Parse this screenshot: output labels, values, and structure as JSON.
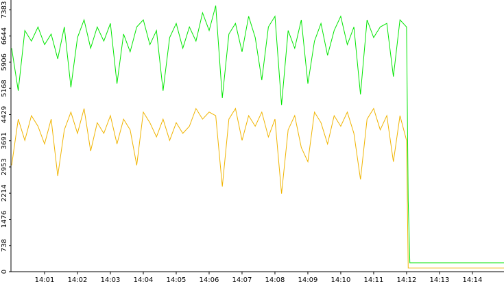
{
  "chart_data": {
    "type": "line",
    "x": [
      0,
      0.2,
      0.4,
      0.6,
      0.8,
      1.0,
      1.2,
      1.4,
      1.6,
      1.8,
      2.0,
      2.2,
      2.4,
      2.6,
      2.8,
      3.0,
      3.2,
      3.4,
      3.6,
      3.8,
      4.0,
      4.2,
      4.4,
      4.6,
      4.8,
      5.0,
      5.2,
      5.4,
      5.6,
      5.8,
      6.0,
      6.2,
      6.4,
      6.6,
      6.8,
      7.0,
      7.2,
      7.4,
      7.6,
      7.8,
      8.0,
      8.2,
      8.4,
      8.6,
      8.8,
      9.0,
      9.2,
      9.4,
      9.6,
      9.8,
      10.0,
      10.2,
      10.4,
      10.6,
      10.8,
      11.0,
      11.2,
      11.4,
      11.6,
      11.8,
      12.0,
      12.05,
      12.1,
      14.96
    ],
    "series": [
      {
        "color": "#00e600",
        "values": [
          6300,
          5100,
          6800,
          6500,
          6900,
          6400,
          6700,
          6000,
          6900,
          5200,
          6600,
          7100,
          6300,
          6900,
          6500,
          7000,
          5300,
          6700,
          6200,
          6900,
          7100,
          6400,
          6800,
          5100,
          6600,
          7000,
          6300,
          6900,
          6500,
          7300,
          6800,
          7500,
          4900,
          6700,
          7000,
          6200,
          7200,
          6600,
          5400,
          6900,
          7200,
          4700,
          6800,
          6300,
          7100,
          5300,
          6500,
          7000,
          6100,
          6800,
          7200,
          6400,
          6900,
          5000,
          7100,
          6600,
          6900,
          7000,
          5500,
          7100,
          6900,
          2000,
          250,
          250
        ]
      },
      {
        "color": "#f0b400",
        "values": [
          3000,
          4300,
          3700,
          4400,
          4100,
          3600,
          4300,
          2700,
          4000,
          4500,
          3900,
          4600,
          3400,
          4200,
          3900,
          4400,
          3600,
          4300,
          4000,
          3000,
          4500,
          4200,
          3800,
          4300,
          3700,
          4200,
          3900,
          4100,
          4600,
          4300,
          4500,
          4400,
          2400,
          4300,
          4600,
          3700,
          4400,
          4100,
          4500,
          3800,
          4300,
          2200,
          4000,
          4400,
          3500,
          3100,
          4500,
          4200,
          3600,
          4400,
          4100,
          4500,
          3900,
          2600,
          4300,
          4600,
          4000,
          4400,
          3100,
          4400,
          3700,
          100,
          100,
          100
        ]
      }
    ],
    "xlim": [
      0,
      14.96
    ],
    "xticks": [
      {
        "value": 1,
        "label": "14:01"
      },
      {
        "value": 2,
        "label": "14:02"
      },
      {
        "value": 3,
        "label": "14:03"
      },
      {
        "value": 4,
        "label": "14:04"
      },
      {
        "value": 5,
        "label": "14:05"
      },
      {
        "value": 6,
        "label": "14:06"
      },
      {
        "value": 7,
        "label": "14:07"
      },
      {
        "value": 8,
        "label": "14:08"
      },
      {
        "value": 9,
        "label": "14:09"
      },
      {
        "value": 10,
        "label": "14:10"
      },
      {
        "value": 11,
        "label": "14:11"
      },
      {
        "value": 12,
        "label": "14:12"
      },
      {
        "value": 13,
        "label": "14:13"
      },
      {
        "value": 14,
        "label": "14:14"
      }
    ],
    "ylim": [
      0,
      7660
    ],
    "yticks": [
      0,
      738,
      1476,
      2214,
      2953,
      3691,
      4429,
      5168,
      5906,
      6644,
      7383
    ]
  }
}
